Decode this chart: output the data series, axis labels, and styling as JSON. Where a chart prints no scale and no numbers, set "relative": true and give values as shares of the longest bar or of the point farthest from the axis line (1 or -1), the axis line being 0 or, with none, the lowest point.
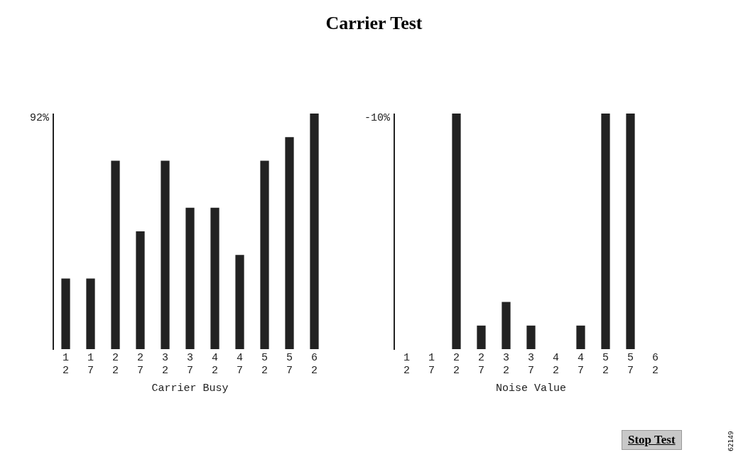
{
  "chart_data": [
    {
      "type": "bar",
      "title": "Carrier Test",
      "xlabel": "Carrier Busy",
      "relative": true,
      "color": "#222222",
      "grid": false,
      "legend": false,
      "categories": [
        "12",
        "17",
        "22",
        "27",
        "32",
        "37",
        "42",
        "47",
        "52",
        "57",
        "62"
      ],
      "values": [
        0.3,
        0.3,
        0.8,
        0.5,
        0.8,
        0.6,
        0.6,
        0.4,
        0.8,
        0.9,
        1.0
      ],
      "annotations": [
        "92%"
      ]
    },
    {
      "type": "bar",
      "xlabel": "Noise Value",
      "relative": true,
      "color": "#222222",
      "grid": false,
      "legend": false,
      "categories": [
        "12",
        "17",
        "22",
        "27",
        "32",
        "37",
        "42",
        "47",
        "52",
        "57",
        "62"
      ],
      "values": [
        0,
        0,
        1.0,
        0.1,
        0.2,
        0.1,
        0,
        0.1,
        1.0,
        1.0,
        0
      ],
      "annotations": [
        "-10%",
        "Stop Test",
        "62149"
      ]
    }
  ]
}
